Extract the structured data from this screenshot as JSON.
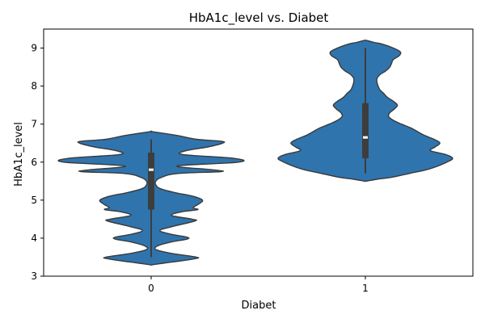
{
  "chart_data": {
    "type": "violin",
    "title": "HbA1c_level vs. Diabet",
    "xlabel": "Diabet",
    "ylabel": "HbA1c_level",
    "categories": [
      "0",
      "1"
    ],
    "ylim": [
      3,
      9.5
    ],
    "yticks": [
      "3",
      "4",
      "5",
      "6",
      "7",
      "8",
      "9"
    ],
    "color": "#2f74ad",
    "edge_color": "#3a3a3a",
    "groups": [
      {
        "category": "0",
        "min": 3.5,
        "q1": 4.75,
        "median": 5.8,
        "q3": 6.25,
        "max": 6.6,
        "density_y": [
          3.3,
          3.35,
          3.45,
          3.5,
          3.6,
          3.7,
          3.8,
          3.9,
          4.0,
          4.1,
          4.2,
          4.3,
          4.45,
          4.5,
          4.6,
          4.7,
          4.75,
          4.8,
          4.9,
          5.0,
          5.1,
          5.2,
          5.3,
          5.4,
          5.5,
          5.6,
          5.7,
          5.75,
          5.8,
          5.9,
          6.0,
          6.1,
          6.2,
          6.3,
          6.4,
          6.5,
          6.55,
          6.6,
          6.7,
          6.8
        ],
        "density_w": [
          0.02,
          0.25,
          0.72,
          0.78,
          0.35,
          0.08,
          0.12,
          0.35,
          0.65,
          0.35,
          0.15,
          0.35,
          0.75,
          0.7,
          0.35,
          0.55,
          0.8,
          0.72,
          0.82,
          0.88,
          0.72,
          0.4,
          0.16,
          0.08,
          0.08,
          0.18,
          0.45,
          1.2,
          1.05,
          0.45,
          1.5,
          1.42,
          0.55,
          0.6,
          0.98,
          1.23,
          1.2,
          0.78,
          0.45,
          0.02
        ]
      },
      {
        "category": "1",
        "min": 5.7,
        "q1": 6.1,
        "median": 6.65,
        "q3": 7.55,
        "max": 9.0,
        "density_y": [
          5.5,
          5.55,
          5.6,
          5.7,
          5.8,
          5.9,
          6.0,
          6.1,
          6.2,
          6.3,
          6.4,
          6.5,
          6.6,
          6.7,
          6.8,
          6.9,
          7.0,
          7.1,
          7.2,
          7.3,
          7.4,
          7.5,
          7.6,
          7.7,
          7.8,
          7.9,
          8.0,
          8.1,
          8.2,
          8.3,
          8.4,
          8.5,
          8.6,
          8.7,
          8.8,
          8.9,
          9.0,
          9.1,
          9.15,
          9.2
        ],
        "density_w": [
          0.02,
          0.2,
          0.45,
          0.75,
          1.05,
          1.25,
          1.4,
          1.5,
          1.38,
          1.12,
          1.2,
          1.28,
          1.18,
          1.02,
          0.9,
          0.78,
          0.62,
          0.48,
          0.4,
          0.42,
          0.5,
          0.55,
          0.48,
          0.38,
          0.32,
          0.25,
          0.22,
          0.2,
          0.2,
          0.25,
          0.35,
          0.42,
          0.45,
          0.48,
          0.58,
          0.6,
          0.48,
          0.3,
          0.15,
          0.02
        ]
      }
    ]
  }
}
